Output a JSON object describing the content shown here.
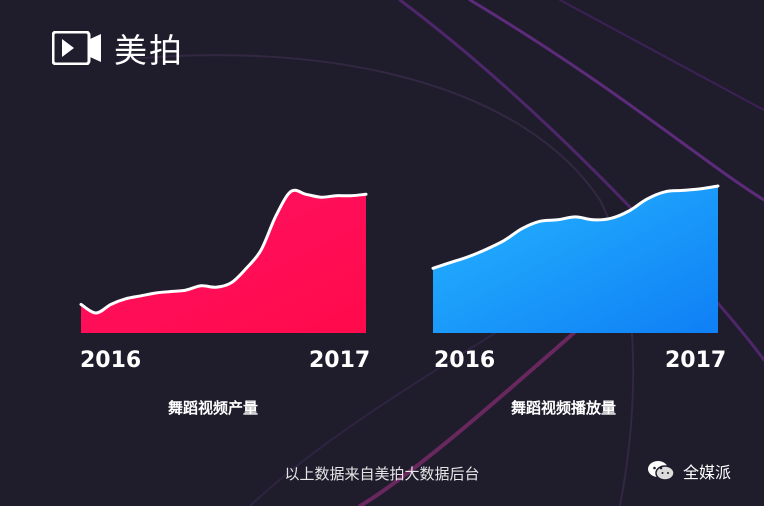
{
  "brand": {
    "name": "美拍"
  },
  "chart_data": [
    {
      "type": "area",
      "title": "舞蹈视频产量",
      "x_start_label": "2016",
      "x_end_label": "2017",
      "color": "#ff1166",
      "color_end": "#ff0a4a",
      "y_axis": "none",
      "values": [
        0.2,
        0.14,
        0.2,
        0.24,
        0.26,
        0.28,
        0.29,
        0.3,
        0.33,
        0.32,
        0.35,
        0.45,
        0.58,
        0.82,
        0.99,
        0.97,
        0.95,
        0.96,
        0.96,
        0.97
      ]
    },
    {
      "type": "area",
      "title": "舞蹈视频播放量",
      "x_start_label": "2016",
      "x_end_label": "2017",
      "color": "#26b6ff",
      "color_end": "#0f7ff5",
      "y_axis": "none",
      "values": [
        0.44,
        0.48,
        0.52,
        0.57,
        0.63,
        0.71,
        0.76,
        0.77,
        0.79,
        0.77,
        0.78,
        0.83,
        0.91,
        0.96,
        0.97,
        0.98,
        1.0
      ]
    }
  ],
  "footer": {
    "source_text": "以上数据来自美拍大数据后台"
  },
  "watermark": {
    "text": "全媒派",
    "icon": "wechat-icon"
  }
}
